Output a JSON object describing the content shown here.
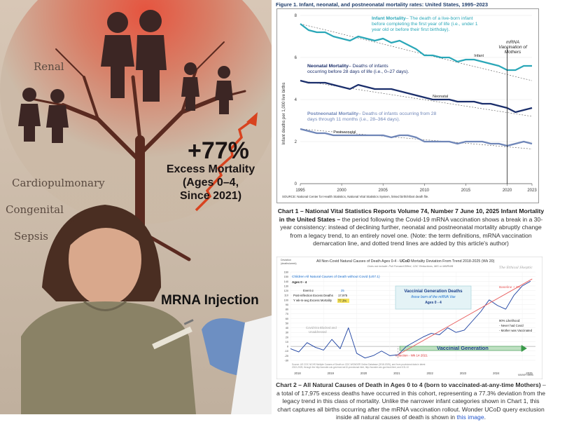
{
  "colors": {
    "infant": "#2aa7b8",
    "neonatal": "#1a2e6b",
    "postneonatal": "#6f86b8",
    "fig_title": "#1f3d6b",
    "excess_line": "#d8431f",
    "trend_red": "#e85c5c",
    "green_arrow": "#3a9a4a",
    "deaths_series": "#1a3fa0"
  },
  "poster": {
    "percent": "+77%",
    "excess_lines": [
      "Excess Mortality",
      "(Ages 0–4,",
      "Since 2021)"
    ],
    "organs": [
      "Renal",
      "Cardiopulmonary",
      "Congenital",
      "Sepsis"
    ],
    "injection": "MRNA Injection"
  },
  "chart1": {
    "title": "Figure 1. Infant, neonatal, and postneonatal mortality rates: United States, 1995–2023",
    "ylabel": "Infant deaths per 1,000 live births",
    "source": "SOURCE: National Center for Health Statistics, National Vital Statistics System, linked birth/infant death file.",
    "vline_label": [
      "mRNA",
      "Vaccination of",
      "Mothers"
    ],
    "annotations": {
      "infant": {
        "head": "Infant Mortality",
        "rest": " – The death of a live-born infant before completing the first year of life (i.e., under 1 year old or before their first birthday)."
      },
      "neonatal": {
        "head": "Neonatal Mortality",
        "rest": " – Deaths of infants occurring before 28 days of life (i.e., 0–27 days)."
      },
      "postneonatal": {
        "head": "Postneonatal Mortality",
        "rest": " – Deaths of infants occurring from 28 days through 11 months (i.e., 28–364 days)."
      }
    }
  },
  "chart1_caption": {
    "bold": "Chart 1 – National Vital Statistics Reports Volume 74, Number 7 June 10, 2025 Infant Mortality in the United States –",
    "rest": " the period following the Covid-19 mRNA vaccination shows a break in a 30-year consistency: instead of declining further, neonatal and postneonatal mortality abruptly change from a legacy trend, to an entirely novel one. (Note: the term definitions, mRNA vaccination demarcation line, and dotted trend lines are added by this article's author)"
  },
  "chart2": {
    "title_pre": "All Non-Covid Natural Causes of Death Ages 0-4 - ",
    "title_bold": "UCoD",
    "title_post": " Mortality Deviation From Trend  2018-2025 (Wk 20)",
    "subtitle": "Does not include: Pull Forward Effect, CDC Reductions, MIS or MMRWB",
    "y_axis_label": [
      "Deviation",
      "(deaths/week)"
    ],
    "logo": "The Ethical Skeptic",
    "legend_title": "Children All Natural Causes of Death without Covid (U07.1)",
    "legend_age": "Ages 0 - 4",
    "event_label": "Event α",
    "event_value": "25",
    "post_label": "Post-inflection Excess Deaths",
    "post_value": "17,975",
    "pct_label": "Y wk-m-avg Excess Mortality",
    "pct_value": "77.3%",
    "box_title": "Vaccinial Generation  Deaths",
    "box_sub": "those born of the mRNA Vax",
    "box_age": "Ages 0 - 4",
    "likelihood": [
      "90% Likelihood:",
      "- Never had Covid",
      "- Mother was Vaccinated"
    ],
    "baseline_note": [
      "Covid Era Blocked and",
      "Unaddressed"
    ],
    "inflection": "Inflection - Wk 14 2021",
    "vaccinial_generation": "Vaccinial Generation",
    "trend_label": "Baseline + 3%",
    "mmwr": "MMWR Week",
    "source_lines": [
      "Source: US CDC NCHS Multiple Causes of Death on CDC WONDER Online Database (2018-2025), and from provisional data in latest",
      "2022-2025, through the http://wonder.cdc.gov/mcd-icd10-provisional.html, http://wonder.cdc.gov/mcd.html, and ICD-10"
    ]
  },
  "chart2_caption": {
    "bold": "Chart 2 – All Natural Causes of Death in Ages 0 to 4 (born to vaccinated-at-any-time Mothers)",
    "rest": " – a total of 17,975 excess deaths have occurred in this cohort, representing a 77.3% deviation from the legacy trend in this class of mortality. Unlike the narrower infant categories shown in Chart 1, this chart captures all births occurring after the mRNA vaccination rollout. Wonder UCoD query exclusion inside all natural causes of death is shown in ",
    "link": "this image",
    "end": "."
  },
  "chart_data": [
    {
      "type": "line",
      "title": "Figure 1. Infant, neonatal, and postneonatal mortality rates: United States, 1995–2023",
      "ylabel": "Infant deaths per 1,000 live births",
      "xlim": [
        1995,
        2023
      ],
      "ylim": [
        0,
        8
      ],
      "xticks": [
        1995,
        2000,
        2005,
        2010,
        2015,
        2020,
        2023
      ],
      "yticks": [
        0,
        2,
        4,
        6,
        8
      ],
      "vline": 2020,
      "x": [
        1995,
        1996,
        1997,
        1998,
        1999,
        2000,
        2001,
        2002,
        2003,
        2004,
        2005,
        2006,
        2007,
        2008,
        2009,
        2010,
        2011,
        2012,
        2013,
        2014,
        2015,
        2016,
        2017,
        2018,
        2019,
        2020,
        2021,
        2022,
        2023
      ],
      "series": [
        {
          "name": "Infant",
          "values": [
            7.6,
            7.3,
            7.2,
            7.2,
            7.0,
            6.9,
            6.8,
            7.0,
            6.9,
            6.8,
            6.9,
            6.7,
            6.8,
            6.6,
            6.4,
            6.1,
            6.1,
            6.0,
            6.0,
            5.8,
            5.9,
            5.9,
            5.8,
            5.7,
            5.6,
            5.4,
            5.4,
            5.6,
            5.6
          ],
          "trend_to": 4.9
        },
        {
          "name": "Neonatal",
          "values": [
            4.9,
            4.8,
            4.8,
            4.8,
            4.7,
            4.6,
            4.5,
            4.7,
            4.6,
            4.5,
            4.5,
            4.5,
            4.4,
            4.3,
            4.2,
            4.1,
            4.0,
            4.0,
            4.0,
            3.9,
            3.9,
            3.9,
            3.8,
            3.8,
            3.7,
            3.6,
            3.4,
            3.5,
            3.6
          ],
          "trend_to": 3.2
        },
        {
          "name": "Postneonatal",
          "values": [
            2.6,
            2.5,
            2.4,
            2.4,
            2.3,
            2.3,
            2.3,
            2.3,
            2.3,
            2.3,
            2.3,
            2.2,
            2.3,
            2.3,
            2.2,
            2.0,
            2.0,
            2.0,
            2.0,
            1.9,
            2.0,
            2.0,
            2.0,
            1.9,
            1.9,
            1.8,
            1.9,
            2.0,
            1.9
          ],
          "trend_to": 1.65
        }
      ]
    },
    {
      "type": "line",
      "title": "All Non-Covid Natural Causes of Death Ages 0-4 - UCoD Mortality Deviation From Trend  2018-2025 (Wk 20)",
      "ylabel": "Deviation (deaths/week)",
      "xlim": [
        2018,
        2025.4
      ],
      "ylim": [
        -30,
        160
      ],
      "xticks": [
        2018,
        2019,
        2020,
        2021,
        2022,
        2023,
        2024,
        2025
      ],
      "yticks": [
        -30,
        -20,
        -10,
        0,
        10,
        20,
        30,
        40,
        50,
        60,
        70,
        80,
        90,
        100,
        110,
        120,
        130,
        140,
        150,
        160
      ],
      "inflection": 2021.25,
      "x": [
        2018.0,
        2018.25,
        2018.5,
        2018.75,
        2019.0,
        2019.25,
        2019.5,
        2019.75,
        2020.0,
        2020.25,
        2020.5,
        2020.75,
        2021.0,
        2021.25,
        2021.5,
        2021.75,
        2022.0,
        2022.25,
        2022.5,
        2022.75,
        2023.0,
        2023.25,
        2023.5,
        2023.75,
        2024.0,
        2024.25,
        2024.5,
        2024.75,
        2025.0,
        2025.25
      ],
      "series": [
        {
          "name": "Deviation",
          "values": [
            -5,
            -12,
            8,
            -2,
            -8,
            15,
            -5,
            40,
            -15,
            -25,
            -20,
            -10,
            -20,
            -18,
            0,
            10,
            20,
            28,
            25,
            40,
            30,
            35,
            55,
            75,
            100,
            88,
            80,
            110,
            130,
            140
          ]
        },
        {
          "name": "Baseline + 3%",
          "x": [
            2021.25,
            2025.3
          ],
          "values": [
            -18,
            145
          ]
        }
      ]
    }
  ]
}
